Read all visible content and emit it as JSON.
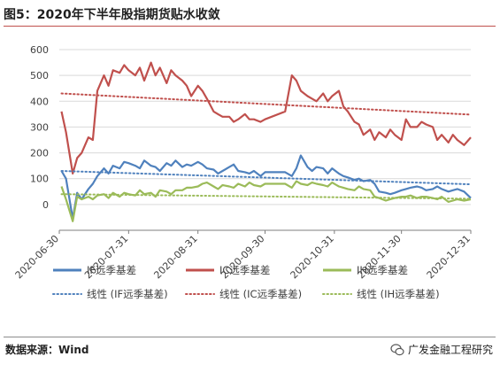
{
  "title": "图5：2020年下半年股指期货贴水收敛",
  "source": "数据来源：Wind",
  "brand": "广发金融工程研究",
  "icon": "wechat-icon",
  "colors": {
    "if": "#4f81bd",
    "ic": "#c0504d",
    "ih": "#9bbb59",
    "grid": "#d9d9d9",
    "axis": "#7f7f7f",
    "text": "#404040"
  },
  "chart_data": {
    "type": "line",
    "ylim": [
      -100,
      600
    ],
    "yticks": [
      0,
      100,
      200,
      300,
      400,
      500,
      600
    ],
    "xlim": [
      "2020-06-30",
      "2020-12-31"
    ],
    "xticks": [
      "2020-06-30",
      "2020-07-31",
      "2020-08-31",
      "2020-09-30",
      "2020-10-31",
      "2020-11-30",
      "2020-12-31"
    ],
    "grid": "horizontal",
    "legend": "bottom",
    "series": [
      {
        "name": "IF远季基差",
        "key": "if",
        "style": "solid",
        "x": [
          "2020-07-01",
          "2020-07-03",
          "2020-07-06",
          "2020-07-08",
          "2020-07-10",
          "2020-07-13",
          "2020-07-15",
          "2020-07-17",
          "2020-07-20",
          "2020-07-22",
          "2020-07-24",
          "2020-07-27",
          "2020-07-29",
          "2020-07-31",
          "2020-08-03",
          "2020-08-05",
          "2020-08-07",
          "2020-08-10",
          "2020-08-12",
          "2020-08-14",
          "2020-08-17",
          "2020-08-19",
          "2020-08-21",
          "2020-08-24",
          "2020-08-26",
          "2020-08-28",
          "2020-08-31",
          "2020-09-02",
          "2020-09-04",
          "2020-09-07",
          "2020-09-09",
          "2020-09-11",
          "2020-09-14",
          "2020-09-16",
          "2020-09-18",
          "2020-09-21",
          "2020-09-23",
          "2020-09-25",
          "2020-09-28",
          "2020-09-30",
          "2020-10-09",
          "2020-10-12",
          "2020-10-14",
          "2020-10-16",
          "2020-10-19",
          "2020-10-21",
          "2020-10-23",
          "2020-10-26",
          "2020-10-28",
          "2020-10-30",
          "2020-11-02",
          "2020-11-04",
          "2020-11-06",
          "2020-11-09",
          "2020-11-11",
          "2020-11-13",
          "2020-11-16",
          "2020-11-18",
          "2020-11-20",
          "2020-11-23",
          "2020-11-25",
          "2020-11-27",
          "2020-11-30",
          "2020-12-02",
          "2020-12-04",
          "2020-12-07",
          "2020-12-09",
          "2020-12-11",
          "2020-12-14",
          "2020-12-16",
          "2020-12-18",
          "2020-12-21",
          "2020-12-23",
          "2020-12-25",
          "2020-12-28",
          "2020-12-31"
        ],
        "values": [
          130,
          100,
          -55,
          45,
          20,
          60,
          80,
          110,
          140,
          120,
          150,
          140,
          165,
          160,
          150,
          140,
          170,
          150,
          145,
          130,
          160,
          150,
          170,
          145,
          155,
          150,
          165,
          155,
          140,
          135,
          120,
          130,
          145,
          155,
          130,
          125,
          120,
          130,
          110,
          125,
          125,
          110,
          140,
          190,
          145,
          130,
          145,
          140,
          120,
          140,
          120,
          110,
          105,
          95,
          100,
          90,
          95,
          80,
          50,
          45,
          40,
          45,
          55,
          60,
          65,
          70,
          65,
          55,
          60,
          70,
          60,
          50,
          55,
          60,
          50,
          25
        ]
      },
      {
        "name": "IC远季基差",
        "key": "ic",
        "style": "solid",
        "x": [
          "2020-07-01",
          "2020-07-03",
          "2020-07-06",
          "2020-07-08",
          "2020-07-10",
          "2020-07-13",
          "2020-07-15",
          "2020-07-17",
          "2020-07-20",
          "2020-07-22",
          "2020-07-24",
          "2020-07-27",
          "2020-07-29",
          "2020-07-31",
          "2020-08-03",
          "2020-08-05",
          "2020-08-07",
          "2020-08-10",
          "2020-08-12",
          "2020-08-14",
          "2020-08-17",
          "2020-08-19",
          "2020-08-21",
          "2020-08-24",
          "2020-08-26",
          "2020-08-28",
          "2020-08-31",
          "2020-09-02",
          "2020-09-04",
          "2020-09-07",
          "2020-09-09",
          "2020-09-11",
          "2020-09-14",
          "2020-09-16",
          "2020-09-18",
          "2020-09-21",
          "2020-09-23",
          "2020-09-25",
          "2020-09-28",
          "2020-09-30",
          "2020-10-09",
          "2020-10-12",
          "2020-10-14",
          "2020-10-16",
          "2020-10-19",
          "2020-10-21",
          "2020-10-23",
          "2020-10-26",
          "2020-10-28",
          "2020-10-30",
          "2020-11-02",
          "2020-11-04",
          "2020-11-06",
          "2020-11-09",
          "2020-11-11",
          "2020-11-13",
          "2020-11-16",
          "2020-11-18",
          "2020-11-20",
          "2020-11-23",
          "2020-11-25",
          "2020-11-27",
          "2020-11-30",
          "2020-12-02",
          "2020-12-04",
          "2020-12-07",
          "2020-12-09",
          "2020-12-11",
          "2020-12-14",
          "2020-12-16",
          "2020-12-18",
          "2020-12-21",
          "2020-12-23",
          "2020-12-25",
          "2020-12-28",
          "2020-12-31"
        ],
        "values": [
          360,
          280,
          120,
          180,
          200,
          260,
          250,
          440,
          500,
          460,
          520,
          510,
          540,
          520,
          500,
          530,
          480,
          550,
          500,
          530,
          470,
          520,
          500,
          480,
          460,
          420,
          460,
          440,
          410,
          360,
          350,
          340,
          340,
          320,
          330,
          350,
          330,
          330,
          320,
          330,
          360,
          500,
          480,
          440,
          420,
          410,
          400,
          430,
          400,
          420,
          440,
          380,
          360,
          320,
          310,
          270,
          290,
          250,
          280,
          260,
          290,
          270,
          250,
          330,
          300,
          300,
          320,
          310,
          300,
          250,
          270,
          240,
          270,
          250,
          230,
          260
        ]
      },
      {
        "name": "IH远季基差",
        "key": "ih",
        "style": "solid",
        "x": [
          "2020-07-01",
          "2020-07-03",
          "2020-07-06",
          "2020-07-08",
          "2020-07-10",
          "2020-07-13",
          "2020-07-15",
          "2020-07-17",
          "2020-07-20",
          "2020-07-22",
          "2020-07-24",
          "2020-07-27",
          "2020-07-29",
          "2020-07-31",
          "2020-08-03",
          "2020-08-05",
          "2020-08-07",
          "2020-08-10",
          "2020-08-12",
          "2020-08-14",
          "2020-08-17",
          "2020-08-19",
          "2020-08-21",
          "2020-08-24",
          "2020-08-26",
          "2020-08-28",
          "2020-08-31",
          "2020-09-02",
          "2020-09-04",
          "2020-09-07",
          "2020-09-09",
          "2020-09-11",
          "2020-09-14",
          "2020-09-16",
          "2020-09-18",
          "2020-09-21",
          "2020-09-23",
          "2020-09-25",
          "2020-09-28",
          "2020-09-30",
          "2020-10-09",
          "2020-10-12",
          "2020-10-14",
          "2020-10-16",
          "2020-10-19",
          "2020-10-21",
          "2020-10-23",
          "2020-10-26",
          "2020-10-28",
          "2020-10-30",
          "2020-11-02",
          "2020-11-04",
          "2020-11-06",
          "2020-11-09",
          "2020-11-11",
          "2020-11-13",
          "2020-11-16",
          "2020-11-18",
          "2020-11-20",
          "2020-11-23",
          "2020-11-25",
          "2020-11-27",
          "2020-11-30",
          "2020-12-02",
          "2020-12-04",
          "2020-12-07",
          "2020-12-09",
          "2020-12-11",
          "2020-12-14",
          "2020-12-16",
          "2020-12-18",
          "2020-12-21",
          "2020-12-23",
          "2020-12-25",
          "2020-12-28",
          "2020-12-31"
        ],
        "values": [
          70,
          20,
          -65,
          30,
          20,
          30,
          20,
          35,
          40,
          25,
          45,
          30,
          45,
          40,
          35,
          55,
          40,
          45,
          30,
          55,
          50,
          40,
          55,
          55,
          65,
          65,
          70,
          80,
          85,
          70,
          60,
          75,
          70,
          65,
          80,
          70,
          85,
          75,
          70,
          80,
          80,
          65,
          90,
          80,
          75,
          85,
          80,
          75,
          70,
          85,
          70,
          65,
          60,
          55,
          70,
          60,
          55,
          30,
          25,
          15,
          20,
          25,
          30,
          30,
          35,
          25,
          30,
          30,
          25,
          20,
          30,
          10,
          15,
          20,
          15,
          20
        ]
      },
      {
        "name": "线性 (IF远季基差)",
        "key": "if",
        "style": "dotted",
        "x": [
          "2020-07-01",
          "2020-12-31"
        ],
        "values": [
          130,
          78
        ]
      },
      {
        "name": "线性 (IC远季基差)",
        "key": "ic",
        "style": "dotted",
        "x": [
          "2020-07-01",
          "2020-12-31"
        ],
        "values": [
          430,
          348
        ]
      },
      {
        "name": "线性 (IH远季基差)",
        "key": "ih",
        "style": "dotted",
        "x": [
          "2020-07-01",
          "2020-12-31"
        ],
        "values": [
          40,
          22
        ]
      }
    ]
  }
}
